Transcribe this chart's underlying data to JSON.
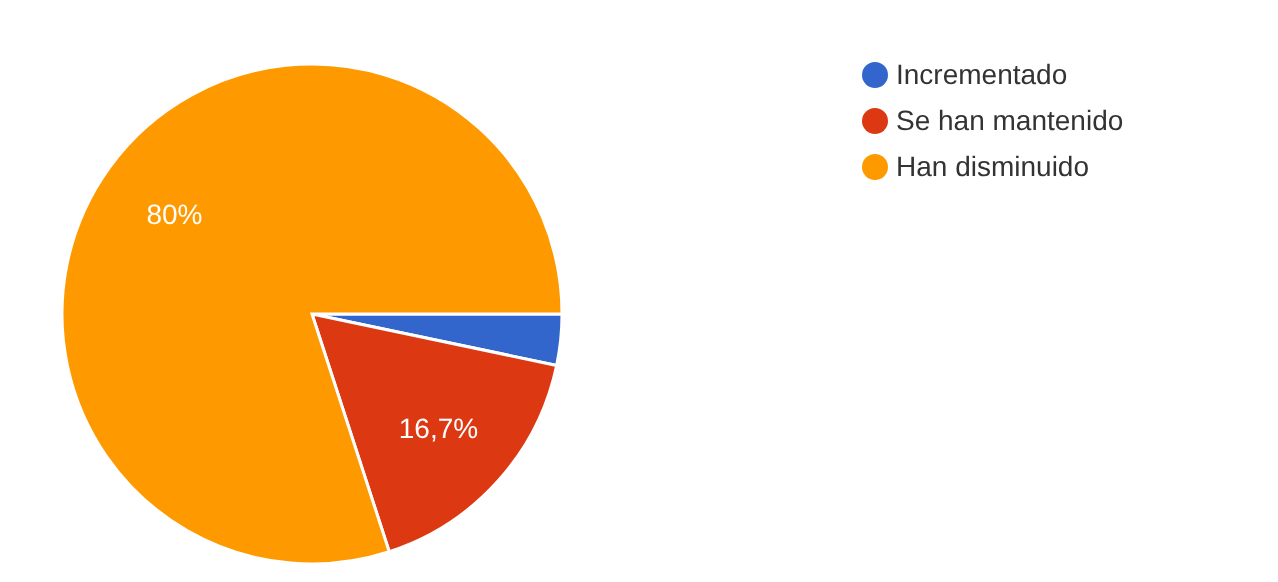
{
  "chart_data": {
    "type": "pie",
    "categories": [
      "Incrementado",
      "Se han mantenido",
      "Han disminuido"
    ],
    "values": [
      3.3,
      16.7,
      80
    ],
    "colors": [
      "#3366cc",
      "#dc3912",
      "#ff9900"
    ],
    "value_labels": [
      null,
      "16,7%",
      "80%"
    ],
    "legend": "top right"
  }
}
